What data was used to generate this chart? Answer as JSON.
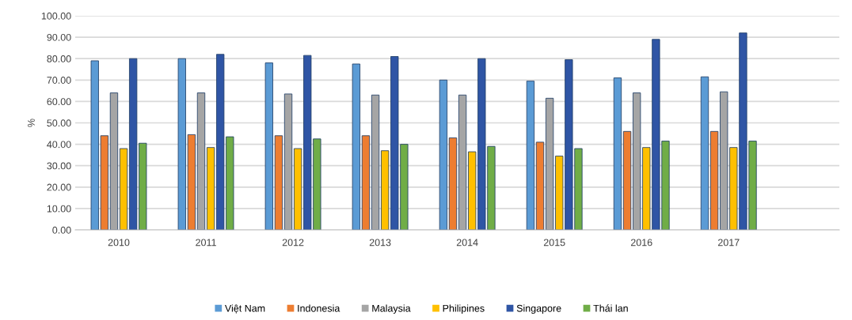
{
  "chart_data": {
    "type": "bar",
    "ylabel": "%",
    "categories": [
      "2010",
      "2011",
      "2012",
      "2013",
      "2014",
      "2015",
      "2016",
      "2017",
      null
    ],
    "series": [
      {
        "name": "Việt Nam",
        "color": "#5b9bd5",
        "values": [
          79,
          80,
          78,
          77.5,
          70,
          69.5,
          71,
          71.5,
          null
        ]
      },
      {
        "name": "Indonesia",
        "color": "#ed7d31",
        "values": [
          44,
          44.5,
          44,
          44,
          43,
          41,
          46,
          46,
          null
        ]
      },
      {
        "name": "Malaysia",
        "color": "#a5a5a5",
        "values": [
          64,
          64,
          63.5,
          63,
          63,
          61.5,
          64,
          64.5,
          null
        ]
      },
      {
        "name": "Philipines",
        "color": "#ffc000",
        "values": [
          38,
          38.5,
          38,
          37,
          36.5,
          34.5,
          38.5,
          38.5,
          null
        ]
      },
      {
        "name": "Singapore",
        "color": "#2f55a5",
        "values": [
          80,
          82,
          81.5,
          81,
          80,
          79.5,
          89,
          92,
          null
        ]
      },
      {
        "name": "Thái lan",
        "color": "#70ad47",
        "values": [
          40.5,
          43.5,
          42.5,
          40,
          39,
          38,
          41.5,
          41.5,
          null
        ]
      }
    ],
    "ylim": [
      0,
      100
    ],
    "yticks": [
      {
        "value": 0,
        "label": "0.00"
      },
      {
        "value": 10,
        "label": "10.00"
      },
      {
        "value": 20,
        "label": "20.00"
      },
      {
        "value": 30,
        "label": "30.00"
      },
      {
        "value": 40,
        "label": "40.00"
      },
      {
        "value": 50,
        "label": "50.00"
      },
      {
        "value": 60,
        "label": "60.00"
      },
      {
        "value": 70,
        "label": "70.00"
      },
      {
        "value": 80,
        "label": "80.00"
      },
      {
        "value": 90,
        "label": "90.00"
      },
      {
        "value": 100,
        "label": "100.00"
      }
    ],
    "grid": "y",
    "legend": "bottom"
  }
}
